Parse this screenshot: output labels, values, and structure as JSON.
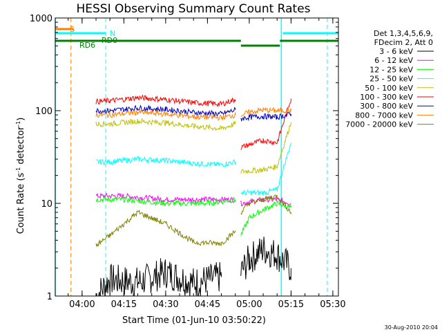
{
  "chart_data": {
    "type": "line",
    "title": "HESSI Observing Summary Count Rates",
    "xlabel": "Start Time (01-Jun-10 03:50:22)",
    "ylabel_prefix": "Count Rate (s",
    "ylabel_sup": "-1",
    "ylabel_mid": " detector",
    "ylabel_sup2": "-1",
    "ylabel_suffix": ")",
    "y_scale": "log",
    "ylim": [
      1,
      1000
    ],
    "xlim": [
      "03:50:22",
      "05:32:00"
    ],
    "x_ticks": [
      "04:00",
      "04:15",
      "04:30",
      "04:45",
      "05:00",
      "05:15",
      "05:30"
    ],
    "y_ticks": [
      "1",
      "10",
      "100",
      "1000"
    ],
    "legend": {
      "header": [
        "Det 1,3,4,5,6,9,",
        "FDecim 2, Att 0"
      ],
      "placement": "right"
    },
    "series": [
      {
        "name": "3 - 6 keV",
        "color": "#000000",
        "segments": [
          {
            "x": [
              "04:05",
              "04:10",
              "04:20",
              "04:30",
              "04:40",
              "04:50"
            ],
            "y": [
              1.0,
              1.5,
              1.4,
              1.8,
              1.4,
              1.6
            ]
          },
          {
            "x": [
              "04:57",
              "05:00",
              "05:05",
              "05:10",
              "05:15"
            ],
            "y": [
              1.8,
              2.5,
              3.2,
              2.8,
              2.0
            ]
          }
        ]
      },
      {
        "name": "6 - 12 keV",
        "color": "#ff00ff",
        "segments": [
          {
            "x": [
              "04:05",
              "04:15",
              "04:30",
              "04:45",
              "04:55"
            ],
            "y": [
              12,
              12,
              11,
              11,
              11
            ]
          },
          {
            "x": [
              "04:57",
              "05:05",
              "05:10",
              "05:15"
            ],
            "y": [
              10,
              11,
              11,
              10
            ]
          }
        ]
      },
      {
        "name": "12 - 25 keV",
        "color": "#00ff00",
        "segments": [
          {
            "x": [
              "04:05",
              "04:15",
              "04:30",
              "04:45",
              "04:55"
            ],
            "y": [
              11,
              11,
              10,
              10,
              11
            ]
          },
          {
            "x": [
              "04:57",
              "05:00",
              "05:05",
              "05:10",
              "05:15"
            ],
            "y": [
              4.5,
              7,
              8.5,
              10,
              9
            ]
          }
        ]
      },
      {
        "name": "25 - 50 keV",
        "color": "#00ffff",
        "segments": [
          {
            "x": [
              "04:05",
              "04:10",
              "04:20",
              "04:30",
              "04:40",
              "04:50",
              "04:55"
            ],
            "y": [
              28,
              28,
              30,
              29,
              27,
              26,
              28
            ]
          },
          {
            "x": [
              "04:57",
              "05:05",
              "05:10",
              "05:15"
            ],
            "y": [
              13,
              13,
              14,
              45
            ]
          }
        ]
      },
      {
        "name": "50 - 100 keV",
        "color": "#c0c000",
        "segments": [
          {
            "x": [
              "04:05",
              "04:10",
              "04:20",
              "04:30",
              "04:40",
              "04:50",
              "04:55"
            ],
            "y": [
              72,
              72,
              77,
              74,
              68,
              64,
              72
            ]
          },
          {
            "x": [
              "04:57",
              "05:05",
              "05:10",
              "05:15"
            ],
            "y": [
              22,
              23,
              25,
              75
            ]
          }
        ]
      },
      {
        "name": "100 - 300 keV",
        "color": "#ff0000",
        "segments": [
          {
            "x": [
              "04:05",
              "04:10",
              "04:20",
              "04:30",
              "04:40",
              "04:50",
              "04:55"
            ],
            "y": [
              125,
              128,
              138,
              132,
              122,
              118,
              132
            ]
          },
          {
            "x": [
              "04:57",
              "05:00",
              "05:05",
              "05:10",
              "05:15"
            ],
            "y": [
              40,
              43,
              48,
              45,
              135
            ]
          }
        ]
      },
      {
        "name": "300 - 800 keV",
        "color": "#0000c0",
        "segments": [
          {
            "x": [
              "04:05",
              "04:10",
              "04:20",
              "04:30",
              "04:40",
              "04:50",
              "04:55"
            ],
            "y": [
              100,
              100,
              107,
              103,
              96,
              92,
              102
            ]
          },
          {
            "x": [
              "04:57",
              "05:00",
              "05:05",
              "05:10",
              "05:15"
            ],
            "y": [
              82,
              85,
              87,
              85,
              92
            ]
          }
        ]
      },
      {
        "name": "800 - 7000 keV",
        "color": "#ff8000",
        "segments": [
          {
            "x": [
              "04:05",
              "04:10",
              "04:20",
              "04:30",
              "04:40",
              "04:50",
              "04:55"
            ],
            "y": [
              90,
              90,
              96,
              92,
              86,
              84,
              90
            ]
          },
          {
            "x": [
              "04:57",
              "05:00",
              "05:05",
              "05:10",
              "05:15"
            ],
            "y": [
              90,
              96,
              102,
              100,
              100
            ]
          }
        ]
      },
      {
        "name": "7000 - 20000 keV",
        "color": "#808000",
        "segments": [
          {
            "x": [
              "04:05",
              "04:10",
              "04:15",
              "04:20",
              "04:30",
              "04:40",
              "04:50",
              "04:55"
            ],
            "y": [
              3.5,
              4.5,
              6,
              8,
              6,
              3.8,
              3.7,
              5
            ]
          },
          {
            "x": [
              "04:57",
              "05:00",
              "05:05",
              "05:10",
              "05:15"
            ],
            "y": [
              8,
              10,
              11,
              12,
              8
            ]
          }
        ]
      }
    ],
    "flags": [
      {
        "label": "S",
        "color": "#ff8000",
        "segments": [
          [
            "03:50:22",
            "03:57"
          ]
        ]
      },
      {
        "label": "N",
        "color": "#00ffff",
        "segments": [
          [
            "03:50:22",
            "04:08:30"
          ],
          [
            "05:12",
            "05:32"
          ]
        ]
      },
      {
        "label": "RD0",
        "color": "#008000",
        "segments": [
          [
            "03:50:22",
            "04:57"
          ],
          [
            "05:11",
            "05:32"
          ]
        ]
      },
      {
        "label": "RD6",
        "color": "#008000",
        "segments": [
          [
            "04:57",
            "05:11"
          ]
        ]
      }
    ],
    "vlines": [
      {
        "x": "03:50:22",
        "color": "#00ffff",
        "dash": false
      },
      {
        "x": "03:56:00",
        "color": "#ff8000",
        "dash": true
      },
      {
        "x": "04:08:30",
        "color": "#00ffff",
        "dash": true
      },
      {
        "x": "05:11:30",
        "color": "#00ffff",
        "dash": false
      },
      {
        "x": "05:28:00",
        "color": "#00ffff",
        "dash": true
      }
    ],
    "footer_date": "30-Aug-2010 20:04"
  }
}
